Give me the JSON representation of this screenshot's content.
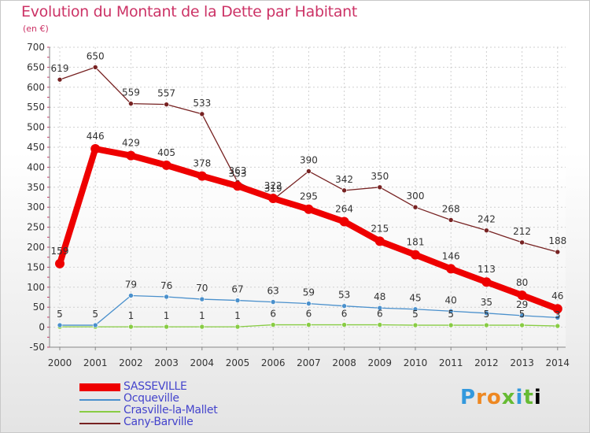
{
  "header": {
    "title": "Evolution du Montant de la Dette par Habitant",
    "subtitle": "(en €)"
  },
  "logo": {
    "letters": [
      "P",
      "r",
      "o",
      "x",
      "i",
      "t",
      "i"
    ]
  },
  "chart_data": {
    "type": "line",
    "title": "Evolution du Montant de la Dette par Habitant",
    "subtitle": "(en €)",
    "xlabel": "",
    "ylabel": "",
    "ylim": [
      -50,
      700
    ],
    "yticks": [
      -50,
      0,
      50,
      100,
      150,
      200,
      250,
      300,
      350,
      400,
      450,
      500,
      550,
      600,
      650,
      700
    ],
    "grid": true,
    "legend_position": "bottom-left",
    "x": [
      2000,
      2001,
      2002,
      2003,
      2004,
      2005,
      2006,
      2007,
      2008,
      2009,
      2010,
      2011,
      2012,
      2013,
      2014
    ],
    "series": [
      {
        "name": "SASSEVILLE",
        "color": "#ee0000",
        "values": [
          159,
          446,
          429,
          405,
          378,
          353,
          322,
          295,
          264,
          215,
          181,
          146,
          113,
          80,
          46
        ],
        "labels": [
          "159",
          "446",
          "429",
          "405",
          "378",
          "353",
          "322",
          "295",
          "264",
          "215",
          "181",
          "146",
          "113",
          "80",
          "46"
        ]
      },
      {
        "name": "Ocqueville",
        "color": "#4a90cc",
        "values": [
          5,
          5,
          79,
          76,
          70,
          67,
          63,
          59,
          53,
          48,
          45,
          40,
          35,
          29,
          24
        ],
        "labels": [
          "5",
          "5",
          "79",
          "76",
          "70",
          "67",
          "63",
          "59",
          "53",
          "48",
          "45",
          "40",
          "35",
          "29",
          ""
        ]
      },
      {
        "name": "Crasville-la-Mallet",
        "color": "#88cc44",
        "values": [
          1,
          1,
          1,
          1,
          1,
          1,
          6,
          6,
          6,
          6,
          5,
          5,
          5,
          5,
          3
        ],
        "labels": [
          "",
          "",
          "1",
          "1",
          "1",
          "1",
          "6",
          "6",
          "6",
          "6",
          "5",
          "5",
          "5",
          "5",
          "3"
        ]
      },
      {
        "name": "Cany-Barville",
        "color": "#772222",
        "values": [
          619,
          650,
          559,
          557,
          533,
          363,
          319,
          390,
          342,
          350,
          300,
          268,
          242,
          212,
          188
        ],
        "labels": [
          "619",
          "650",
          "559",
          "557",
          "533",
          "363",
          "319",
          "390",
          "342",
          "350",
          "300",
          "268",
          "242",
          "212",
          "188"
        ]
      }
    ]
  }
}
